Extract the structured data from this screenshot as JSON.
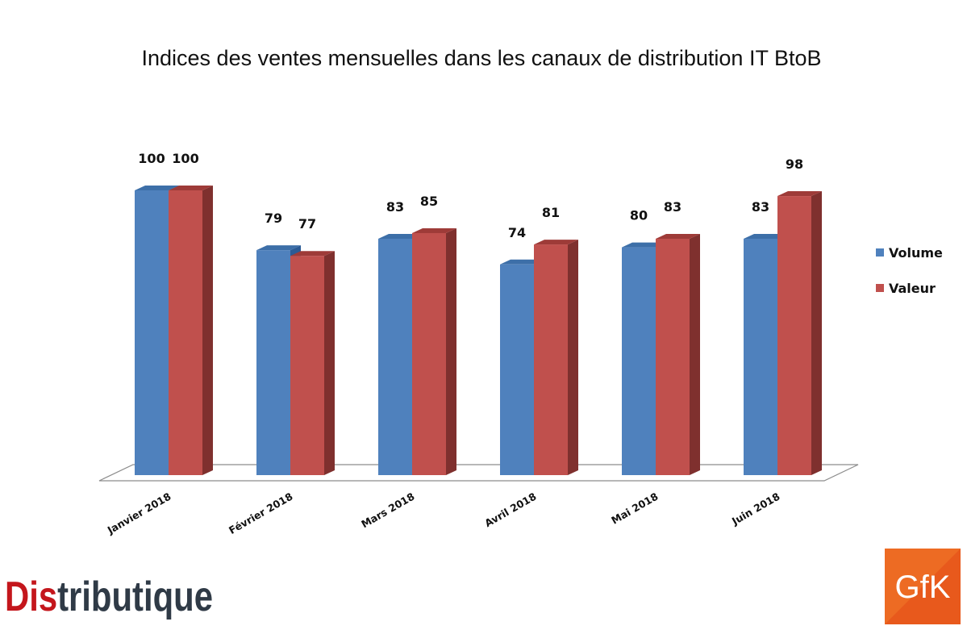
{
  "chart_data": {
    "type": "bar",
    "title": "Indices des ventes mensuelles dans les canaux de distribution IT BtoB",
    "categories": [
      "Janvier 2018",
      "Février 2018",
      "Mars 2018",
      "Avril 2018",
      "Mai 2018",
      "Juin 2018"
    ],
    "series": [
      {
        "name": "Volume",
        "values": [
          100,
          79,
          83,
          74,
          80,
          83
        ],
        "color": "#4f81bd",
        "side_color": "#2b5b95",
        "top_color": "#3d6fa8"
      },
      {
        "name": "Valeur",
        "values": [
          100,
          77,
          85,
          81,
          83,
          98
        ],
        "color": "#c0504d",
        "side_color": "#7f302e",
        "top_color": "#9e3b38"
      }
    ],
    "ylim": [
      0,
      100
    ],
    "grid": false,
    "style": "3d-clustered-column",
    "legend_position": "right"
  },
  "logos": {
    "distributique": {
      "text": "Distributique",
      "red_part": "Dis",
      "dark_part": "tributique",
      "colors": [
        "#c4161c",
        "#2f3a46"
      ]
    },
    "gfk": {
      "text": "GfK",
      "background": "#e8591c"
    }
  }
}
